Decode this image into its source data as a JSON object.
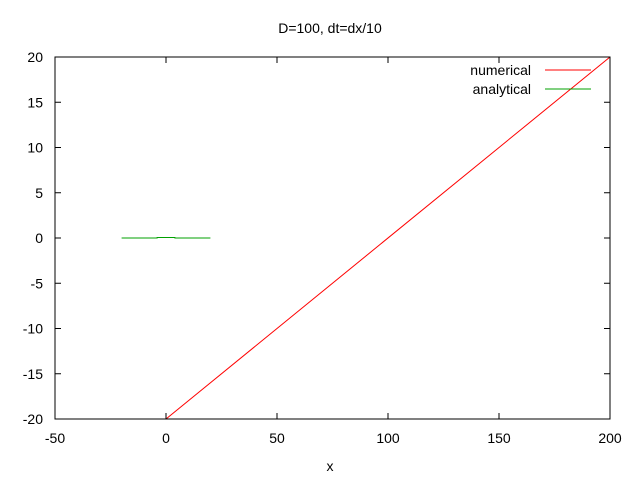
{
  "chart_data": {
    "type": "line",
    "title": "D=100, dt=dx/10",
    "xlabel": "x",
    "ylabel": "",
    "xlim": [
      -50,
      200
    ],
    "ylim": [
      -20,
      20
    ],
    "xticks": [
      -50,
      0,
      50,
      100,
      150,
      200
    ],
    "yticks": [
      -20,
      -15,
      -10,
      -5,
      0,
      5,
      10,
      15,
      20
    ],
    "xtick_labels": [
      "-50",
      "0",
      "50",
      "100",
      "150",
      "200"
    ],
    "ytick_labels": [
      "-20",
      "-15",
      "-10",
      "-5",
      "0",
      "5",
      "10",
      "15",
      "20"
    ],
    "grid": false,
    "legend_position": "top-right",
    "series": [
      {
        "name": "numerical",
        "color": "#ff0000",
        "x": [
          0,
          200
        ],
        "y": [
          -20,
          20
        ]
      },
      {
        "name": "analytical",
        "color": "#00a000",
        "x": [
          -20,
          -4,
          -4,
          4,
          4,
          20
        ],
        "y": [
          0,
          0,
          0.05,
          0.05,
          0,
          0
        ]
      }
    ]
  }
}
